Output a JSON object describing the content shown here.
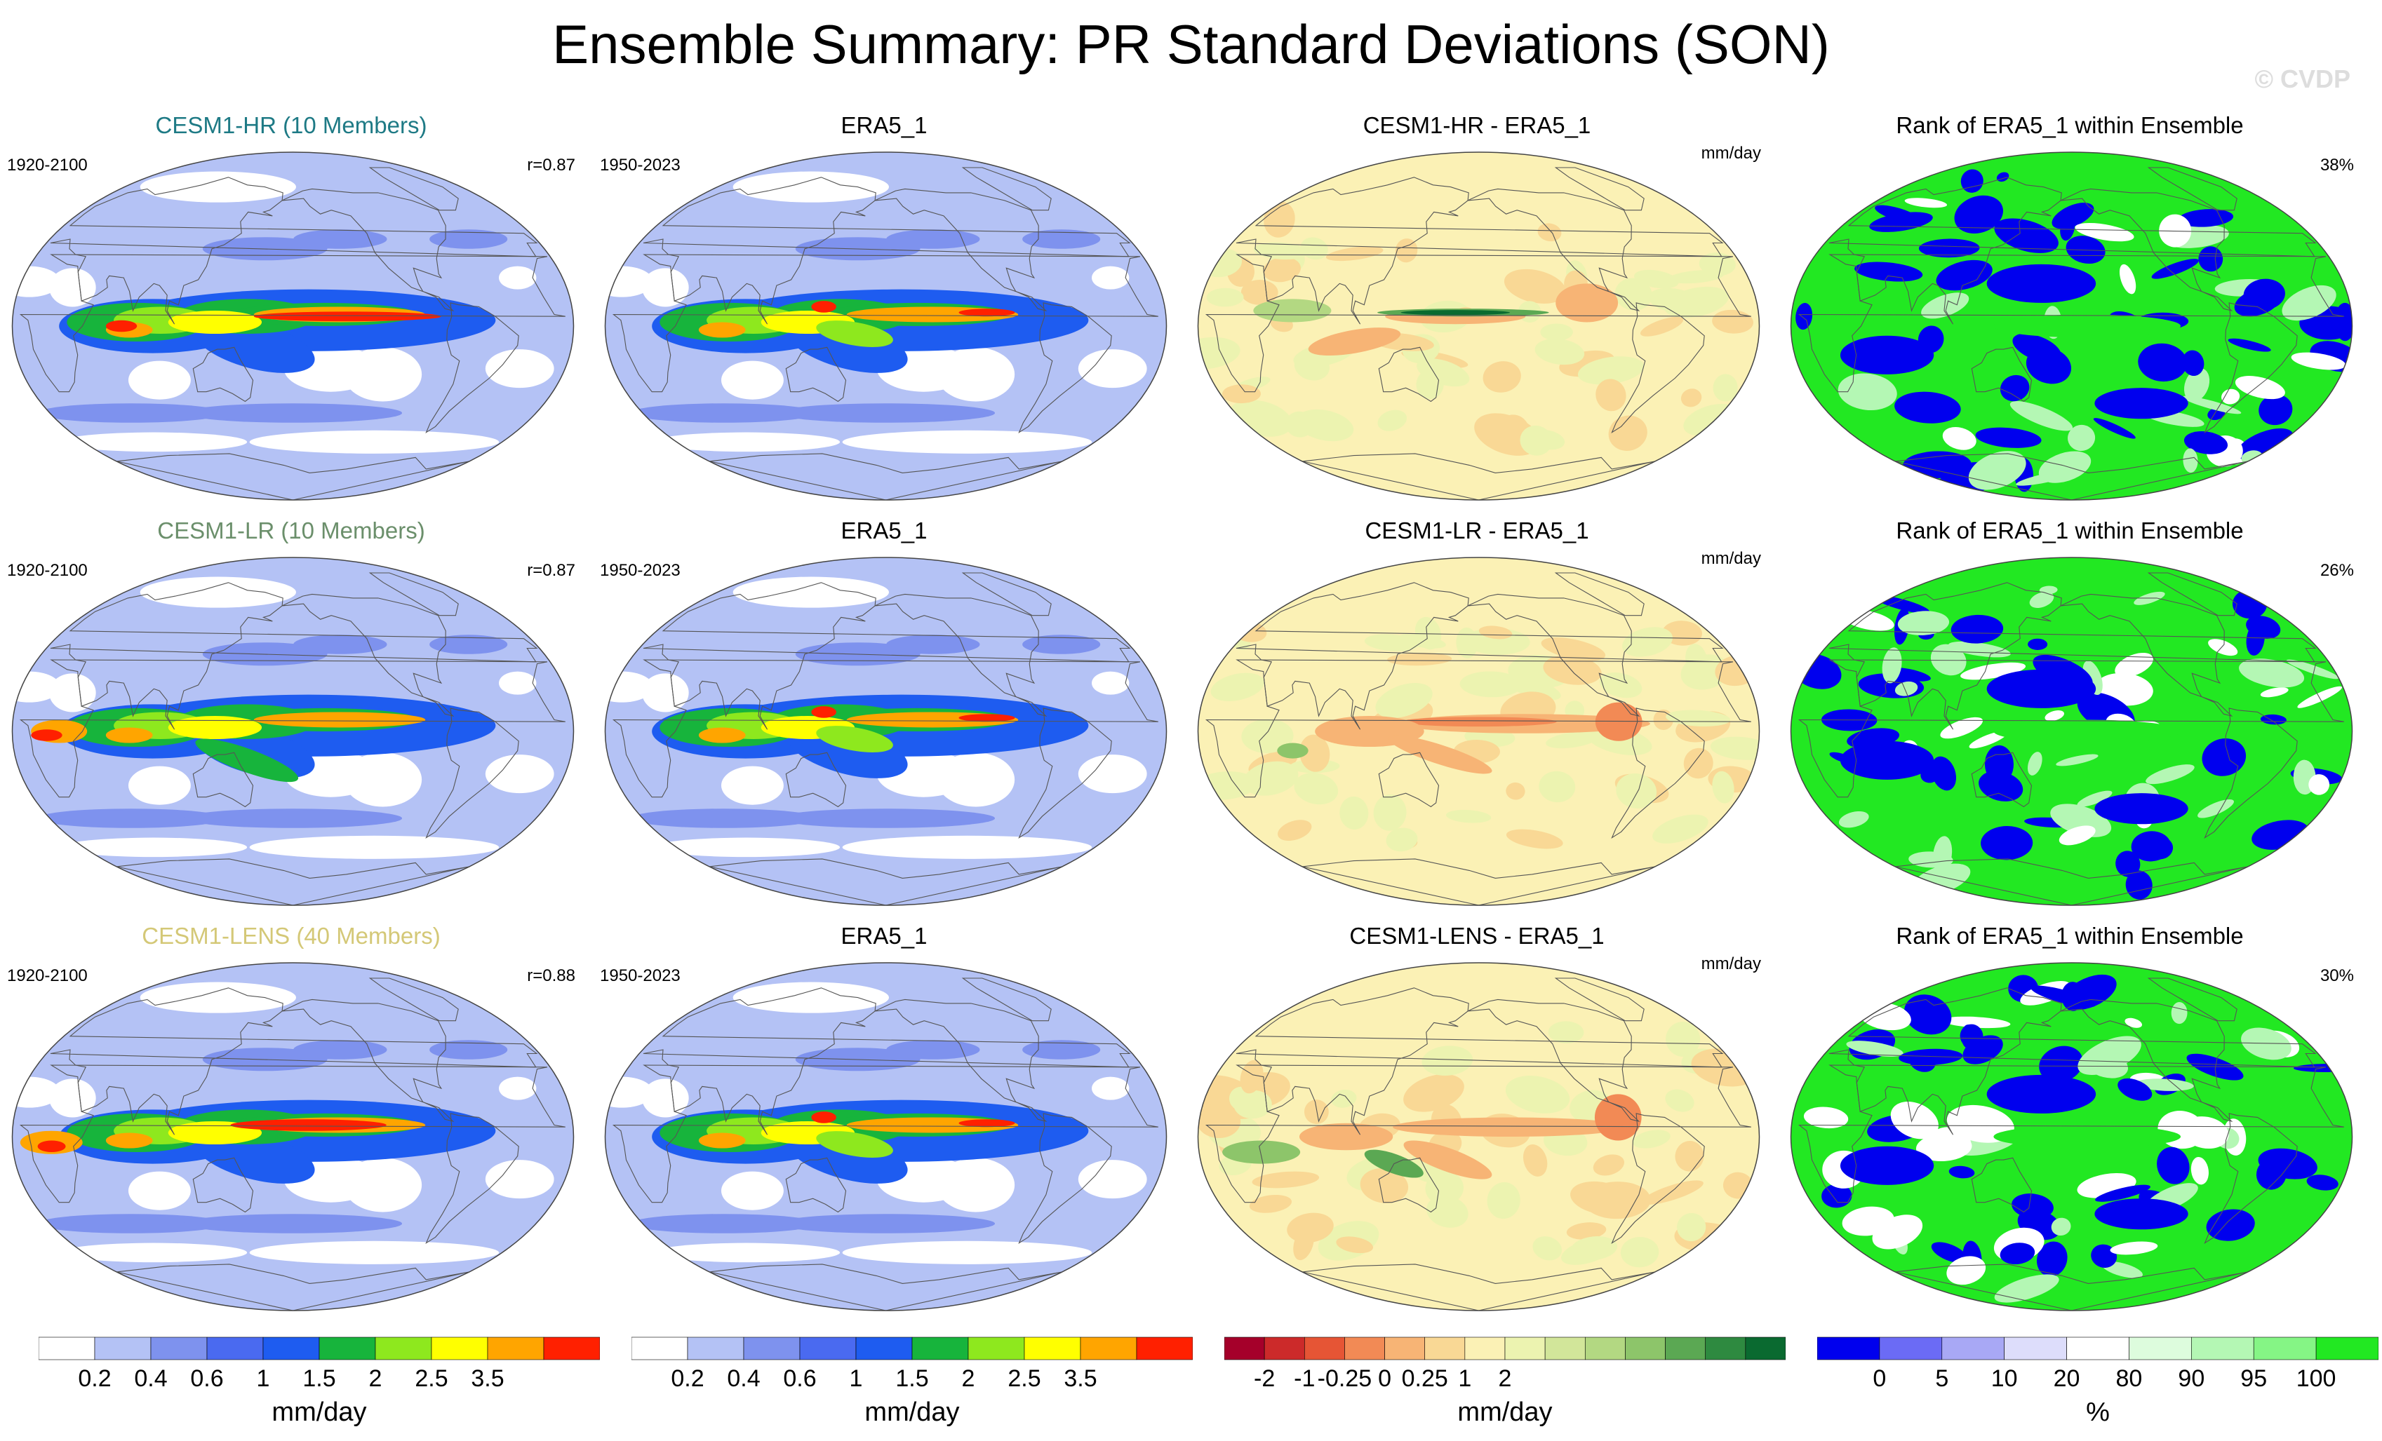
{
  "title": "Ensemble Summary: PR Standard Deviations (SON)",
  "copyright": "© CVDP",
  "colors": {
    "model_hr": "#1e7a85",
    "model_lr": "#6b8f6b",
    "model_lens": "#d4c877",
    "ocean_pale": "#a8b4f2",
    "land_outline": "#555555"
  },
  "rows": [
    {
      "model_title": "CESM1-HR (10 Members)",
      "model_period": "1920-2100",
      "model_r": "r=0.87",
      "obs_title": "ERA5_1",
      "obs_period": "1950-2023",
      "diff_title": "CESM1-HR - ERA5_1",
      "diff_units": "mm/day",
      "rank_title": "Rank of ERA5_1 within Ensemble",
      "rank_pct": "38%"
    },
    {
      "model_title": "CESM1-LR (10 Members)",
      "model_period": "1920-2100",
      "model_r": "r=0.87",
      "obs_title": "ERA5_1",
      "obs_period": "1950-2023",
      "diff_title": "CESM1-LR - ERA5_1",
      "diff_units": "mm/day",
      "rank_title": "Rank of ERA5_1 within Ensemble",
      "rank_pct": "26%"
    },
    {
      "model_title": "CESM1-LENS (40 Members)",
      "model_period": "1920-2100",
      "model_r": "r=0.88",
      "obs_title": "ERA5_1",
      "obs_period": "1950-2023",
      "diff_title": "CESM1-LENS - ERA5_1",
      "diff_units": "mm/day",
      "rank_title": "Rank of ERA5_1 within Ensemble",
      "rank_pct": "30%"
    }
  ],
  "colorbars": {
    "stddev": {
      "label": "mm/day",
      "colors": [
        "#ffffff",
        "#b4c2f5",
        "#7e92ee",
        "#4a6af0",
        "#1e5cf0",
        "#17b43c",
        "#8ee81e",
        "#ffff00",
        "#ffa500",
        "#ff2000"
      ],
      "ticks": [
        "0.2",
        "0.4",
        "0.6",
        "1",
        "1.5",
        "2",
        "2.5",
        "3.5"
      ]
    },
    "diff": {
      "label": "mm/day",
      "colors": [
        "#a5002a",
        "#cc2a2a",
        "#e65535",
        "#f28a55",
        "#f7b475",
        "#f9d895",
        "#fbf1b5",
        "#ecf3b0",
        "#d2e69a",
        "#b3d882",
        "#8dc56a",
        "#5ba853",
        "#2e8a40",
        "#0a6a30"
      ],
      "ticks": [
        "-2",
        "-1",
        "-0.25",
        "0",
        "0.25",
        "1",
        "2"
      ]
    },
    "rank": {
      "label": "%",
      "colors": [
        "#0000ee",
        "#6b6bf5",
        "#a8a8f5",
        "#ddddfb",
        "#ffffff",
        "#ddfcdd",
        "#b4f7b4",
        "#85f585",
        "#22e822"
      ],
      "ticks": [
        "0",
        "5",
        "10",
        "20",
        "80",
        "90",
        "95",
        "100"
      ]
    }
  }
}
